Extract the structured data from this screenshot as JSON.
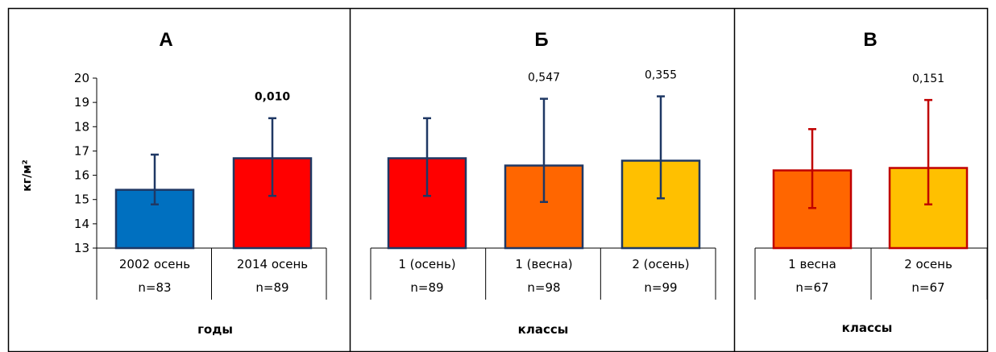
{
  "chart_data": [
    {
      "type": "bar",
      "title": "А",
      "xlabel": "годы",
      "ylabel": "кг/м²",
      "ylim": [
        13,
        20
      ],
      "yticks": [
        13,
        14,
        15,
        16,
        17,
        18,
        19,
        20
      ],
      "categories": [
        "2002 осень",
        "2014 осень"
      ],
      "n_labels": [
        "n=83",
        "n=89"
      ],
      "values": [
        15.4,
        16.7
      ],
      "err_low": [
        14.8,
        15.15
      ],
      "err_high": [
        16.85,
        18.35
      ],
      "fill_colors": [
        "#0070c0",
        "#ff0000"
      ],
      "stroke_colors": [
        "#1f3864",
        "#1f3864"
      ],
      "p_values": [
        null,
        "0,010"
      ],
      "p_colors": [
        null,
        "#ff0000"
      ]
    },
    {
      "type": "bar",
      "title": "Б",
      "xlabel": "классы",
      "ylim": [
        13,
        20
      ],
      "categories": [
        "1 (осень)",
        "1 (весна)",
        "2 (осень)"
      ],
      "n_labels": [
        "n=89",
        "n=98",
        "n=99"
      ],
      "values": [
        16.7,
        16.4,
        16.6
      ],
      "err_low": [
        15.15,
        14.9,
        15.05
      ],
      "err_high": [
        18.35,
        19.15,
        19.25
      ],
      "fill_colors": [
        "#ff0000",
        "#ff6600",
        "#ffc000"
      ],
      "stroke_colors": [
        "#1f3864",
        "#1f3864",
        "#1f3864"
      ],
      "p_values": [
        null,
        "0,547",
        "0,355"
      ],
      "p_colors": [
        null,
        "#000000",
        "#000000"
      ]
    },
    {
      "type": "bar",
      "title": "В",
      "xlabel": "классы",
      "ylim": [
        13,
        20
      ],
      "categories": [
        "1 весна",
        "2 осень"
      ],
      "n_labels": [
        "n=67",
        "n=67"
      ],
      "values": [
        16.2,
        16.3
      ],
      "err_low": [
        14.65,
        14.8
      ],
      "err_high": [
        17.9,
        19.1
      ],
      "fill_colors": [
        "#ff6600",
        "#ffc000"
      ],
      "stroke_colors": [
        "#c00000",
        "#c00000"
      ],
      "p_values": [
        null,
        "0,151"
      ],
      "p_colors": [
        null,
        "#000000"
      ]
    }
  ]
}
